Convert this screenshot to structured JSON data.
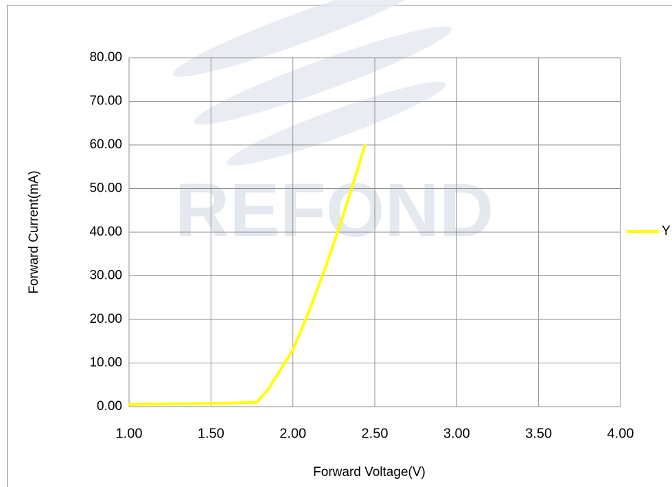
{
  "chart_data": {
    "type": "line",
    "watermark": "REFOND",
    "xlabel": "Forward Voltage(V)",
    "ylabel": "Forward Current(mA)",
    "x": [
      1.0,
      1.2,
      1.4,
      1.6,
      1.78,
      1.85,
      1.9,
      2.0,
      2.1,
      2.2,
      2.3,
      2.4,
      2.44
    ],
    "series": [
      {
        "name": "Y",
        "color": "#ffff00",
        "values": [
          0.5,
          0.6,
          0.7,
          0.8,
          1.0,
          4,
          7,
          13,
          22,
          32,
          43,
          55,
          60
        ]
      }
    ],
    "xlim": [
      1.0,
      4.0
    ],
    "xticks": [
      {
        "value": 1.0,
        "label": "1.00"
      },
      {
        "value": 1.5,
        "label": "1.50"
      },
      {
        "value": 2.0,
        "label": "2.00"
      },
      {
        "value": 2.5,
        "label": "2.50"
      },
      {
        "value": 3.0,
        "label": "3.00"
      },
      {
        "value": 3.5,
        "label": "3.50"
      },
      {
        "value": 4.0,
        "label": "4.00"
      }
    ],
    "ylim": [
      0,
      80
    ],
    "yticks": [
      {
        "value": 0,
        "label": "0.00"
      },
      {
        "value": 10,
        "label": "10.00"
      },
      {
        "value": 20,
        "label": "20.00"
      },
      {
        "value": 30,
        "label": "30.00"
      },
      {
        "value": 40,
        "label": "40.00"
      },
      {
        "value": 50,
        "label": "50.00"
      },
      {
        "value": 60,
        "label": "60.00"
      },
      {
        "value": 70,
        "label": "70.00"
      },
      {
        "value": 80,
        "label": "80.00"
      }
    ],
    "grid": true,
    "legend": "right"
  }
}
